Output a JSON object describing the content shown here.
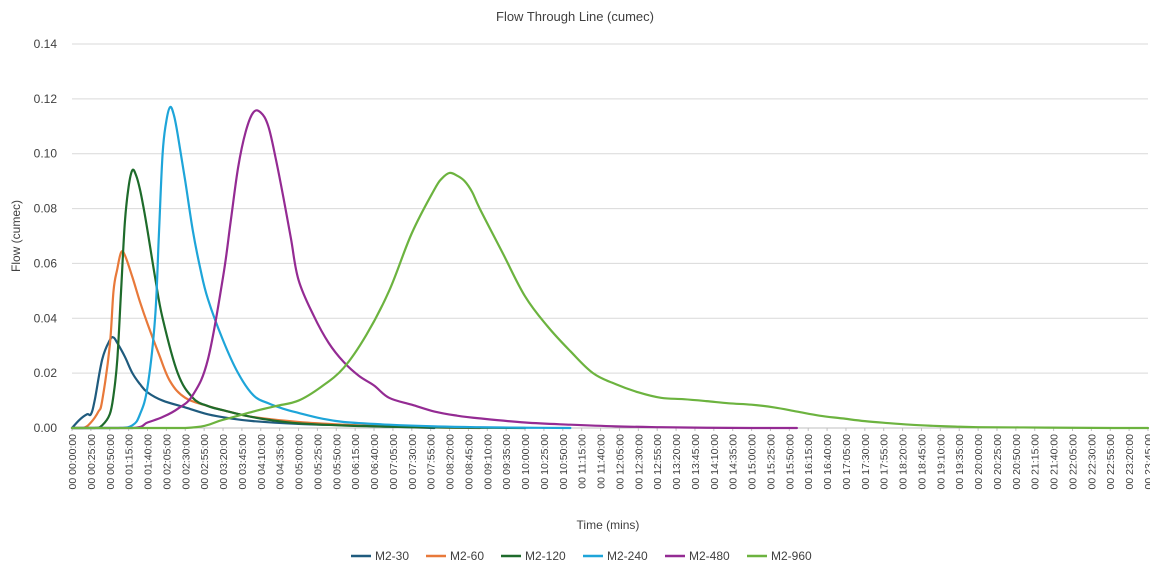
{
  "chart_data": {
    "type": "line",
    "title": "Flow Through Line (cumec)",
    "xlabel": "Time (mins)",
    "ylabel": "Flow (cumec)",
    "ylim": [
      0,
      0.14
    ],
    "yticks": [
      "0.00",
      "0.02",
      "0.04",
      "0.06",
      "0.08",
      "0.10",
      "0.12",
      "0.14"
    ],
    "xlim_minutes": [
      0,
      1425
    ],
    "x_tick_labels": [
      "00 00:00:00",
      "00 00:25:00",
      "00 00:50:00",
      "00 01:15:00",
      "00 01:40:00",
      "00 02:05:00",
      "00 02:30:00",
      "00 02:55:00",
      "00 03:20:00",
      "00 03:45:00",
      "00 04:10:00",
      "00 04:35:00",
      "00 05:00:00",
      "00 05:25:00",
      "00 05:50:00",
      "00 06:15:00",
      "00 06:40:00",
      "00 07:05:00",
      "00 07:30:00",
      "00 07:55:00",
      "00 08:20:00",
      "00 08:45:00",
      "00 09:10:00",
      "00 09:35:00",
      "00 10:00:00",
      "00 10:25:00",
      "00 10:50:00",
      "00 11:15:00",
      "00 11:40:00",
      "00 12:05:00",
      "00 12:30:00",
      "00 12:55:00",
      "00 13:20:00",
      "00 13:45:00",
      "00 14:10:00",
      "00 14:35:00",
      "00 15:00:00",
      "00 15:25:00",
      "00 15:50:00",
      "00 16:15:00",
      "00 16:40:00",
      "00 17:05:00",
      "00 17:30:00",
      "00 17:55:00",
      "00 18:20:00",
      "00 18:45:00",
      "00 19:10:00",
      "00 19:35:00",
      "00 20:00:00",
      "00 20:25:00",
      "00 20:50:00",
      "00 21:15:00",
      "00 21:40:00",
      "00 22:05:00",
      "00 22:30:00",
      "00 22:55:00",
      "00 23:20:00",
      "00 23:45:00"
    ],
    "grid": true,
    "legend_position": "bottom",
    "series": [
      {
        "name": "M2-30",
        "color": "#1f5b7e",
        "x_minutes": [
          0,
          10,
          20,
          25,
          30,
          40,
          50,
          55,
          60,
          70,
          80,
          90,
          100,
          120,
          150,
          180,
          210,
          240,
          300,
          360,
          420,
          480
        ],
        "values": [
          0,
          0.003,
          0.005,
          0.005,
          0.01,
          0.025,
          0.032,
          0.033,
          0.031,
          0.026,
          0.02,
          0.016,
          0.013,
          0.01,
          0.0075,
          0.005,
          0.0035,
          0.0025,
          0.0015,
          0.001,
          0.0005,
          0
        ]
      },
      {
        "name": "M2-60",
        "color": "#e8793a",
        "x_minutes": [
          0,
          15,
          25,
          35,
          40,
          50,
          55,
          60,
          65,
          70,
          80,
          90,
          100,
          115,
          130,
          150,
          180,
          210,
          240,
          300,
          360,
          420,
          480,
          540
        ],
        "values": [
          0,
          0,
          0.002,
          0.006,
          0.01,
          0.03,
          0.05,
          0.058,
          0.064,
          0.063,
          0.055,
          0.046,
          0.038,
          0.027,
          0.017,
          0.011,
          0.008,
          0.0058,
          0.004,
          0.0022,
          0.0012,
          0.0006,
          0.0002,
          0
        ]
      },
      {
        "name": "M2-120",
        "color": "#1e6b2b",
        "x_minutes": [
          0,
          30,
          40,
          50,
          55,
          60,
          65,
          70,
          75,
          80,
          85,
          90,
          95,
          100,
          110,
          120,
          140,
          160,
          180,
          200,
          230,
          260,
          300,
          360,
          420,
          480,
          540,
          600
        ],
        "values": [
          0,
          0,
          0.001,
          0.005,
          0.012,
          0.025,
          0.05,
          0.075,
          0.088,
          0.094,
          0.092,
          0.087,
          0.08,
          0.072,
          0.055,
          0.04,
          0.02,
          0.011,
          0.008,
          0.0065,
          0.0045,
          0.003,
          0.0017,
          0.0009,
          0.0005,
          0.0002,
          0.0001,
          0
        ]
      },
      {
        "name": "M2-240",
        "color": "#1ea5d9",
        "x_minutes": [
          0,
          60,
          80,
          90,
          100,
          110,
          115,
          120,
          125,
          130,
          135,
          140,
          150,
          160,
          170,
          180,
          200,
          220,
          240,
          260,
          280,
          300,
          330,
          360,
          420,
          480,
          540,
          600,
          660
        ],
        "values": [
          0,
          0,
          0.001,
          0.005,
          0.015,
          0.04,
          0.07,
          0.1,
          0.112,
          0.117,
          0.114,
          0.107,
          0.09,
          0.072,
          0.058,
          0.047,
          0.032,
          0.02,
          0.012,
          0.009,
          0.007,
          0.0055,
          0.0035,
          0.0022,
          0.0012,
          0.0006,
          0.0003,
          0.0001,
          0
        ]
      },
      {
        "name": "M2-480",
        "color": "#942b93",
        "x_minutes": [
          0,
          80,
          100,
          120,
          140,
          160,
          180,
          200,
          210,
          220,
          230,
          240,
          250,
          260,
          270,
          280,
          290,
          300,
          320,
          340,
          360,
          380,
          400,
          420,
          450,
          480,
          510,
          540,
          600,
          660,
          720,
          780,
          840,
          900,
          960
        ],
        "values": [
          0,
          0,
          0.002,
          0.004,
          0.007,
          0.012,
          0.025,
          0.055,
          0.075,
          0.095,
          0.108,
          0.115,
          0.115,
          0.11,
          0.098,
          0.084,
          0.069,
          0.054,
          0.041,
          0.031,
          0.024,
          0.019,
          0.0155,
          0.011,
          0.0085,
          0.006,
          0.0045,
          0.0035,
          0.002,
          0.0012,
          0.0006,
          0.0003,
          0.0001,
          0,
          0
        ]
      },
      {
        "name": "M2-960",
        "color": "#6cb33f",
        "x_minutes": [
          0,
          150,
          200,
          240,
          270,
          300,
          330,
          360,
          390,
          420,
          450,
          480,
          490,
          500,
          510,
          520,
          530,
          540,
          570,
          600,
          630,
          660,
          690,
          720,
          750,
          780,
          810,
          840,
          870,
          900,
          930,
          960,
          990,
          1020,
          1050,
          1080,
          1110,
          1140,
          1170,
          1200,
          1260,
          1320,
          1380,
          1425
        ],
        "values": [
          0,
          0,
          0.003,
          0.006,
          0.008,
          0.01,
          0.015,
          0.022,
          0.034,
          0.05,
          0.071,
          0.087,
          0.091,
          0.093,
          0.092,
          0.09,
          0.086,
          0.08,
          0.064,
          0.048,
          0.037,
          0.028,
          0.02,
          0.016,
          0.013,
          0.011,
          0.0105,
          0.0098,
          0.009,
          0.0085,
          0.0075,
          0.006,
          0.0045,
          0.0035,
          0.0025,
          0.0018,
          0.0012,
          0.0008,
          0.0005,
          0.0003,
          0.0002,
          0.0001,
          0,
          0
        ]
      }
    ]
  }
}
